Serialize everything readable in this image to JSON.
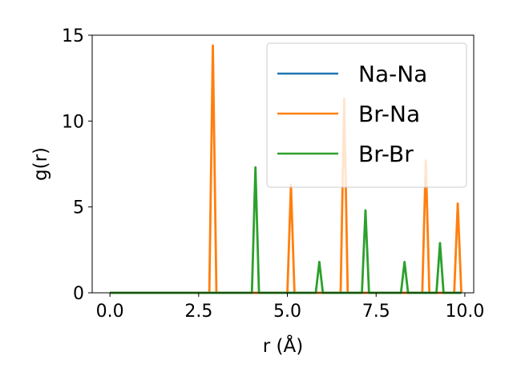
{
  "chart_data": {
    "type": "line",
    "xlabel": "r (Å)",
    "ylabel": "g(r)",
    "xlim": [
      -0.5,
      10.25
    ],
    "ylim": [
      0,
      15
    ],
    "xticks": [
      0.0,
      2.5,
      5.0,
      7.5,
      10.0
    ],
    "xtick_labels": [
      "0.0",
      "2.5",
      "5.0",
      "7.5",
      "10.0"
    ],
    "yticks": [
      0,
      5,
      10,
      15
    ],
    "ytick_labels": [
      "0",
      "5",
      "10",
      "15"
    ],
    "grid": false,
    "legend_position": "upper right",
    "series": [
      {
        "name": "Na-Na",
        "color": "#1f77b4",
        "x": [
          0.0,
          9.9
        ],
        "y": [
          0,
          0
        ]
      },
      {
        "name": "Br-Na",
        "color": "#ff7f0e",
        "x": [
          0.0,
          2.8,
          2.9,
          3.0,
          5.0,
          5.1,
          5.2,
          6.5,
          6.6,
          6.7,
          8.8,
          8.9,
          9.0,
          9.7,
          9.8,
          9.9
        ],
        "y": [
          0,
          0,
          14.4,
          0,
          0,
          6.3,
          0,
          0,
          11.3,
          0,
          0,
          7.7,
          0,
          0,
          5.2,
          0
        ]
      },
      {
        "name": "Br-Br",
        "color": "#2ca02c",
        "x": [
          0.0,
          4.0,
          4.1,
          4.2,
          5.8,
          5.9,
          6.0,
          7.1,
          7.2,
          7.3,
          8.2,
          8.3,
          8.4,
          9.2,
          9.3,
          9.4,
          9.9
        ],
        "y": [
          0,
          0,
          7.3,
          0,
          0,
          1.8,
          0,
          0,
          4.8,
          0,
          0,
          1.8,
          0,
          0,
          2.9,
          0,
          0
        ]
      }
    ]
  }
}
